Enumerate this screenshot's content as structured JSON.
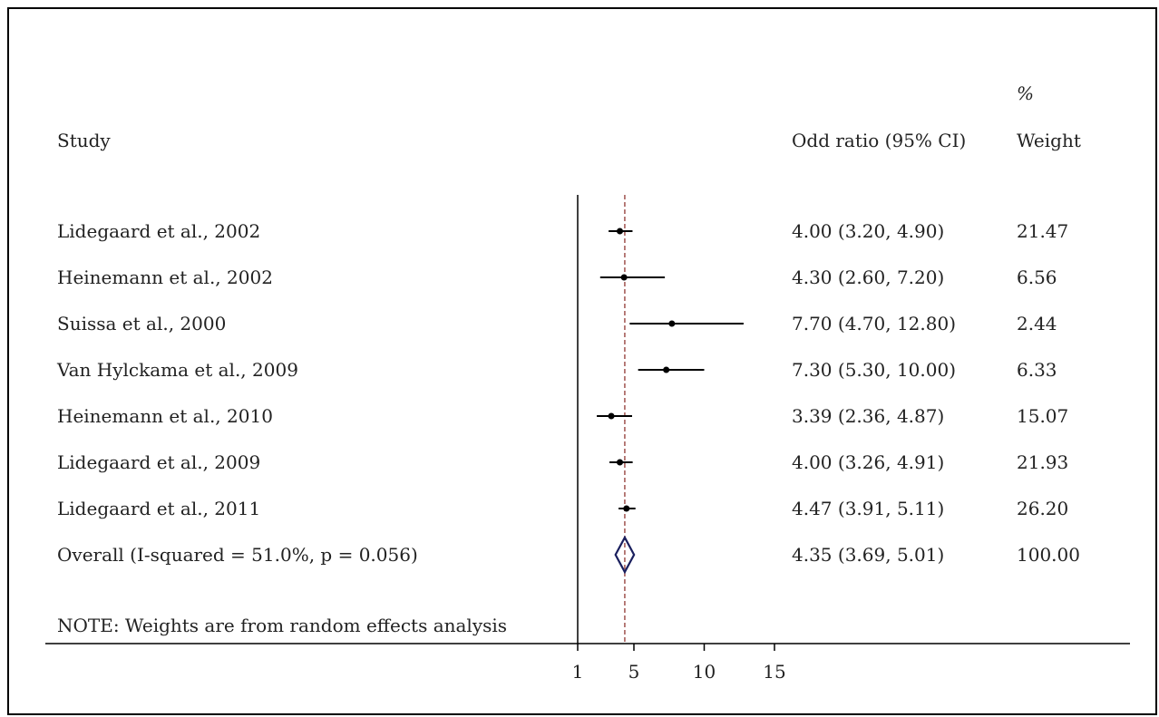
{
  "header": {
    "study": "Study",
    "estimate": "Odd ratio (95% CI)",
    "weight_pct": "%",
    "weight": "Weight"
  },
  "note": "NOTE: Weights are from random effects analysis",
  "colors": {
    "diamond": "#1a1f5e",
    "reference_line": "#a0524e",
    "marks": "#000000"
  },
  "chart_data": {
    "type": "forest",
    "xlim": [
      1,
      15
    ],
    "ticks": [
      "1",
      "5",
      "10",
      "15"
    ],
    "tick_values": [
      1,
      5,
      10,
      15
    ],
    "reference_value": 4.35,
    "studies": [
      {
        "label": "Lidegaard et al., 2002",
        "or": 4.0,
        "lo": 3.2,
        "hi": 4.9,
        "ci_text": "4.00 (3.20, 4.90)",
        "weight": "21.47"
      },
      {
        "label": "Heinemann et al., 2002",
        "or": 4.3,
        "lo": 2.6,
        "hi": 7.2,
        "ci_text": "4.30 (2.60, 7.20)",
        "weight": "6.56"
      },
      {
        "label": "Suissa et al., 2000",
        "or": 7.7,
        "lo": 4.7,
        "hi": 12.8,
        "ci_text": "7.70 (4.70, 12.80)",
        "weight": "2.44"
      },
      {
        "label": "Van Hylckama et al., 2009",
        "or": 7.3,
        "lo": 5.3,
        "hi": 10.0,
        "ci_text": "7.30 (5.30, 10.00)",
        "weight": "6.33"
      },
      {
        "label": "Heinemann et al., 2010",
        "or": 3.39,
        "lo": 2.36,
        "hi": 4.87,
        "ci_text": "3.39 (2.36, 4.87)",
        "weight": "15.07"
      },
      {
        "label": "Lidegaard et al., 2009",
        "or": 4.0,
        "lo": 3.26,
        "hi": 4.91,
        "ci_text": "4.00 (3.26, 4.91)",
        "weight": "21.93"
      },
      {
        "label": "Lidegaard et al., 2011",
        "or": 4.47,
        "lo": 3.91,
        "hi": 5.11,
        "ci_text": "4.47 (3.91, 5.11)",
        "weight": "26.20"
      }
    ],
    "overall": {
      "label": "Overall  (I-squared = 51.0%, p = 0.056)",
      "or": 4.35,
      "lo": 3.69,
      "hi": 5.01,
      "ci_text": "4.35 (3.69, 5.01)",
      "weight": "100.00"
    }
  }
}
